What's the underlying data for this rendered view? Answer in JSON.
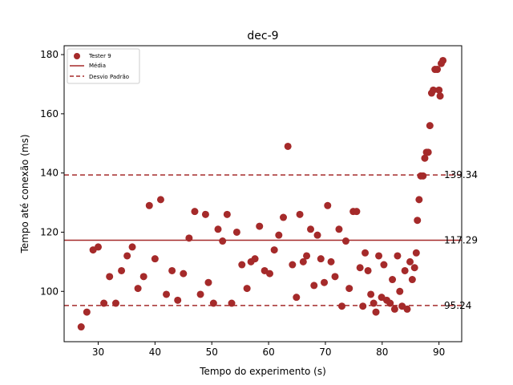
{
  "chart_data": {
    "type": "scatter",
    "title": "dec-9",
    "xlabel": "Tempo do experimento (s)",
    "ylabel": "Tempo até conexão (ms)",
    "xlim": [
      24,
      94
    ],
    "ylim": [
      83,
      183
    ],
    "xticks": [
      30,
      40,
      50,
      60,
      70,
      80,
      90
    ],
    "yticks": [
      100,
      120,
      140,
      160,
      180
    ],
    "grid": false,
    "legend_position": "top-left",
    "colors": {
      "points": "#a52a2a",
      "mean": "#a52a2a",
      "std": "#a52a2a"
    },
    "legend": [
      {
        "label": "Tester 9",
        "kind": "marker"
      },
      {
        "label": "Média",
        "kind": "solid-line"
      },
      {
        "label": "Desvio Padrão",
        "kind": "dashed-line"
      }
    ],
    "reference_lines": {
      "mean": {
        "value": 117.29,
        "label": "117.29"
      },
      "upper": {
        "value": 139.34,
        "label": "139.34"
      },
      "lower": {
        "value": 95.24,
        "label": "95.24"
      }
    },
    "series": [
      {
        "name": "Tester 9",
        "points": [
          [
            27.0,
            88
          ],
          [
            28.0,
            93
          ],
          [
            29.1,
            114
          ],
          [
            30.0,
            115
          ],
          [
            31.0,
            96
          ],
          [
            32.0,
            105
          ],
          [
            33.1,
            96
          ],
          [
            34.1,
            107
          ],
          [
            35.1,
            112
          ],
          [
            36.0,
            115
          ],
          [
            37.0,
            101
          ],
          [
            38.0,
            105
          ],
          [
            39.0,
            129
          ],
          [
            40.0,
            111
          ],
          [
            41.0,
            131
          ],
          [
            42.0,
            99
          ],
          [
            43.0,
            107
          ],
          [
            44.0,
            97
          ],
          [
            45.0,
            106
          ],
          [
            46.0,
            118
          ],
          [
            47.0,
            127
          ],
          [
            48.0,
            99
          ],
          [
            48.9,
            126
          ],
          [
            49.4,
            103
          ],
          [
            50.3,
            96
          ],
          [
            51.1,
            121
          ],
          [
            51.9,
            117
          ],
          [
            52.7,
            126
          ],
          [
            53.5,
            96
          ],
          [
            54.4,
            120
          ],
          [
            55.3,
            109
          ],
          [
            56.2,
            101
          ],
          [
            56.9,
            110
          ],
          [
            57.6,
            111
          ],
          [
            58.4,
            122
          ],
          [
            59.3,
            107
          ],
          [
            60.2,
            106
          ],
          [
            61.0,
            114
          ],
          [
            61.8,
            119
          ],
          [
            62.6,
            125
          ],
          [
            63.4,
            149
          ],
          [
            64.2,
            109
          ],
          [
            64.9,
            98
          ],
          [
            65.5,
            126
          ],
          [
            66.1,
            110
          ],
          [
            66.7,
            112
          ],
          [
            67.4,
            121
          ],
          [
            68.0,
            102
          ],
          [
            68.6,
            119
          ],
          [
            69.2,
            111
          ],
          [
            69.8,
            103
          ],
          [
            70.4,
            129
          ],
          [
            71.0,
            110
          ],
          [
            71.7,
            105
          ],
          [
            72.4,
            121
          ],
          [
            72.9,
            95
          ],
          [
            73.6,
            117
          ],
          [
            74.2,
            101
          ],
          [
            74.9,
            127
          ],
          [
            75.5,
            127
          ],
          [
            76.1,
            108
          ],
          [
            76.6,
            95
          ],
          [
            77.0,
            113
          ],
          [
            77.5,
            107
          ],
          [
            78.0,
            99
          ],
          [
            78.5,
            96
          ],
          [
            78.9,
            93
          ],
          [
            79.4,
            112
          ],
          [
            79.9,
            98
          ],
          [
            80.3,
            109
          ],
          [
            80.8,
            97
          ],
          [
            81.4,
            96
          ],
          [
            81.8,
            104
          ],
          [
            82.2,
            94
          ],
          [
            82.7,
            112
          ],
          [
            83.1,
            100
          ],
          [
            83.5,
            95
          ],
          [
            84.0,
            107
          ],
          [
            84.4,
            94
          ],
          [
            84.9,
            110
          ],
          [
            85.3,
            104
          ],
          [
            85.7,
            108
          ],
          [
            86.0,
            113
          ],
          [
            86.2,
            124
          ],
          [
            86.5,
            131
          ],
          [
            86.8,
            139
          ],
          [
            87.2,
            139
          ],
          [
            87.5,
            145
          ],
          [
            87.8,
            147
          ],
          [
            88.1,
            147
          ],
          [
            88.4,
            156
          ],
          [
            88.7,
            167
          ],
          [
            89.0,
            168
          ],
          [
            89.3,
            175
          ],
          [
            89.7,
            175
          ],
          [
            90.0,
            168
          ],
          [
            90.2,
            166
          ],
          [
            90.4,
            177
          ],
          [
            90.7,
            178
          ]
        ]
      }
    ]
  }
}
